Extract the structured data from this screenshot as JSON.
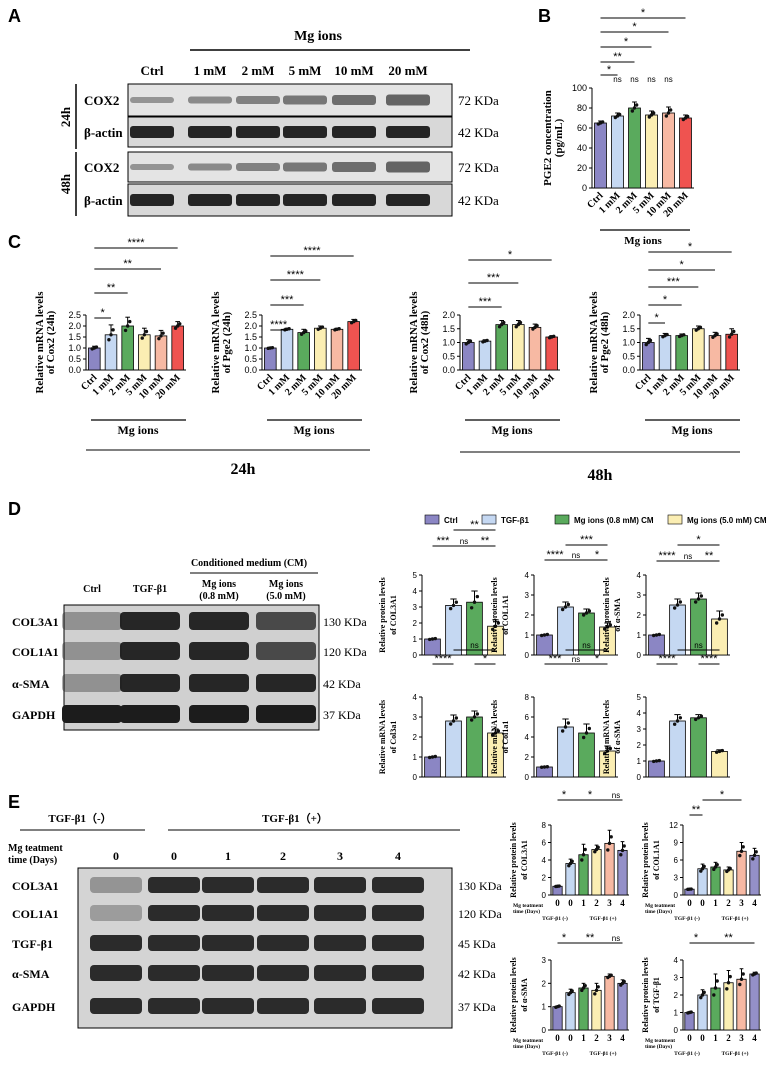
{
  "panels": {
    "A": "A",
    "B": "B",
    "C": "C",
    "D": "D",
    "E": "E"
  },
  "colors": {
    "ctrl": "#8b86c4",
    "c1": "#c5d8f2",
    "c2": "#5aaa5d",
    "c5": "#fbeeb3",
    "c10": "#f7b9a3",
    "c20": "#ef5350",
    "purple": "#9490c8"
  },
  "panelA": {
    "group_label": "Mg ions",
    "columns": [
      "Ctrl",
      "1 mM",
      "2 mM",
      "5 mM",
      "10 mM",
      "20 mM"
    ],
    "times": [
      "24h",
      "48h"
    ],
    "rows": [
      {
        "name": "COX2",
        "kda": "72 KDa"
      },
      {
        "name": "β-actin",
        "kda": "42 KDa"
      },
      {
        "name": "COX2",
        "kda": "72 KDa"
      },
      {
        "name": "β-actin",
        "kda": "42 KDa"
      }
    ]
  },
  "panelB": {
    "ylabel_line1": "PGE2 concentration",
    "ylabel_line2": "(pg/mL)",
    "yticks": [
      "0",
      "20",
      "40",
      "60",
      "80",
      "100"
    ],
    "xlabel": "Mg ions",
    "categories": [
      "Ctrl",
      "1 mM",
      "2 mM",
      "5 mM",
      "10 mM",
      "20 mM"
    ],
    "values": [
      65,
      72,
      80,
      73,
      75,
      70
    ],
    "errors": [
      2,
      3,
      6,
      4,
      6,
      3
    ],
    "sig_top": [
      "*",
      "*",
      "*",
      "**",
      "*"
    ],
    "sig_adj": [
      "*",
      "ns",
      "ns",
      "ns",
      "ns"
    ]
  },
  "panelC": {
    "xlabel": "Mg ions",
    "categories": [
      "Ctrl",
      "1 mM",
      "2 mM",
      "5 mM",
      "10 mM",
      "20 mM"
    ],
    "time_24": "24h",
    "time_48": "48h",
    "charts": [
      {
        "ylabel1": "Relative mRNA levels",
        "ylabel2": "of Cox2 (24h)",
        "yticks": [
          "0.0",
          "0.5",
          "1.0",
          "1.5",
          "2.0",
          "2.5"
        ],
        "ymax": 2.5,
        "values": [
          1.0,
          1.6,
          2.0,
          1.6,
          1.55,
          2.0
        ],
        "errors": [
          0.08,
          0.45,
          0.4,
          0.3,
          0.25,
          0.2
        ],
        "sig": [
          "*",
          "**",
          "**",
          "****"
        ]
      },
      {
        "ylabel1": "Relative mRNA levels",
        "ylabel2": "of Pge2 (24h)",
        "yticks": [
          "0.0",
          "0.5",
          "1.0",
          "1.5",
          "2.0",
          "2.5"
        ],
        "ymax": 2.5,
        "values": [
          1.0,
          1.85,
          1.7,
          1.9,
          1.85,
          2.2
        ],
        "errors": [
          0.03,
          0.05,
          0.15,
          0.1,
          0.05,
          0.1
        ],
        "sig": [
          "****",
          "***",
          "****",
          "****"
        ]
      },
      {
        "ylabel1": "Relative mRNA levels",
        "ylabel2": "of Cox2 (48h)",
        "yticks": [
          "0.0",
          "0.5",
          "1.0",
          "1.5",
          "2.0"
        ],
        "ymax": 2.0,
        "values": [
          1.0,
          1.05,
          1.65,
          1.65,
          1.55,
          1.2
        ],
        "errors": [
          0.1,
          0.05,
          0.15,
          0.15,
          0.12,
          0.05
        ],
        "sig": [
          "***",
          "***",
          "*"
        ]
      },
      {
        "ylabel1": "Relative mRNA levels",
        "ylabel2": "of Pge2 (48h)",
        "yticks": [
          "0.0",
          "0.5",
          "1.0",
          "1.5",
          "2.0"
        ],
        "ymax": 2.0,
        "values": [
          1.0,
          1.25,
          1.25,
          1.5,
          1.25,
          1.3
        ],
        "errors": [
          0.15,
          0.08,
          0.06,
          0.1,
          0.12,
          0.2
        ],
        "sig": [
          "*",
          "*",
          "***",
          "*",
          "*"
        ]
      }
    ]
  },
  "panelD": {
    "legend": [
      "Ctrl",
      "TGF-β1",
      "Mg ions (0.8 mM) CM",
      "Mg ions (5.0 mM) CM"
    ],
    "header": "Conditioned medium (CM)",
    "columns": [
      "Ctrl",
      "TGF-β1",
      "Mg ions\n(0.8 mM)",
      "Mg ions\n(5.0 mM)"
    ],
    "col_line1": [
      "Ctrl",
      "TGF-β1",
      "Mg ions",
      "Mg ions"
    ],
    "col_line2": [
      "",
      "",
      "(0.8 mM)",
      "(5.0 mM)"
    ],
    "rows": [
      {
        "name": "COL3A1",
        "kda": "130 KDa"
      },
      {
        "name": "COL1A1",
        "kda": "120 KDa"
      },
      {
        "name": "α-SMA",
        "kda": "42 KDa"
      },
      {
        "name": "GAPDH",
        "kda": "37 KDa"
      }
    ],
    "charts": [
      {
        "ylabel1": "Relative protein levels",
        "ylabel2": "of COL3A1",
        "yticks": [
          "0",
          "1",
          "2",
          "3",
          "4",
          "5"
        ],
        "ymax": 5,
        "values": [
          1,
          3.1,
          3.3,
          1.8
        ],
        "errors": [
          0,
          0.4,
          0.7,
          0.4
        ],
        "sig": [
          "***",
          "ns",
          "**",
          "**"
        ]
      },
      {
        "ylabel1": "Relative protein levels",
        "ylabel2": "of COL1A1",
        "yticks": [
          "0",
          "1",
          "2",
          "3",
          "4"
        ],
        "ymax": 4,
        "values": [
          1,
          2.4,
          2.1,
          1.4
        ],
        "errors": [
          0,
          0.25,
          0.2,
          0.2
        ],
        "sig": [
          "****",
          "ns",
          "*",
          "***"
        ]
      },
      {
        "ylabel1": "Relative protein levels",
        "ylabel2": "of α-SMA",
        "yticks": [
          "0",
          "1",
          "2",
          "3",
          "4"
        ],
        "ymax": 4,
        "values": [
          1,
          2.5,
          2.8,
          1.8
        ],
        "errors": [
          0,
          0.3,
          0.3,
          0.4
        ],
        "sig": [
          "****",
          "ns",
          "**",
          "*"
        ]
      },
      {
        "ylabel1": "Relative mRNA levels",
        "ylabel2": "of Col3a1",
        "yticks": [
          "0",
          "1",
          "2",
          "3",
          "4"
        ],
        "ymax": 4,
        "values": [
          1,
          2.8,
          3.0,
          2.2
        ],
        "errors": [
          0,
          0.3,
          0.3,
          0.2
        ],
        "sig": [
          "****",
          "ns",
          "*",
          "ns"
        ]
      },
      {
        "ylabel1": "Relative mRNA levels",
        "ylabel2": "of Col1a1",
        "yticks": [
          "0",
          "2",
          "4",
          "6",
          "8"
        ],
        "ymax": 8,
        "values": [
          1,
          5,
          4.4,
          2.6
        ],
        "errors": [
          0,
          0.8,
          0.9,
          0.5
        ],
        "sig": [
          "***",
          "ns",
          "*",
          "ns"
        ]
      },
      {
        "ylabel1": "Relative mRNA levels",
        "ylabel2": "of α-SMA",
        "yticks": [
          "0",
          "1",
          "2",
          "3",
          "4",
          "5"
        ],
        "ymax": 5,
        "values": [
          1,
          3.5,
          3.7,
          1.6
        ],
        "errors": [
          0,
          0.4,
          0.2,
          0.1
        ],
        "sig": [
          "****",
          "ns",
          "****",
          "ns"
        ]
      }
    ]
  },
  "panelE": {
    "tgf_minus": "TGF-β1（-）",
    "tgf_plus": "TGF-β1（+）",
    "mg_label1": "Mg teatment",
    "mg_label2": "time (Days)",
    "days": [
      "0",
      "0",
      "1",
      "2",
      "3",
      "4"
    ],
    "rows": [
      {
        "name": "COL3A1",
        "kda": "130 KDa"
      },
      {
        "name": "COL1A1",
        "kda": "120 KDa"
      },
      {
        "name": "TGF-β1",
        "kda": "45 KDa"
      },
      {
        "name": "α-SMA",
        "kda": "42 KDa"
      },
      {
        "name": "GAPDH",
        "kda": "37 KDa"
      }
    ],
    "x_minus": "TGF-β1 (-)",
    "x_plus": "TGF-β1 (+)",
    "x_mg1": "Mg teatment",
    "x_mg2": "time (Days)",
    "charts": [
      {
        "ylabel1": "Relative protein levels",
        "ylabel2": "of COL3A1",
        "yticks": [
          "0",
          "2",
          "4",
          "6",
          "8"
        ],
        "ymax": 8,
        "values": [
          1,
          3.6,
          4.6,
          5.2,
          5.9,
          5.1
        ],
        "errors": [
          0,
          0.5,
          1.2,
          0.5,
          1.5,
          1.0
        ],
        "sig": [
          "*",
          "*",
          "ns"
        ]
      },
      {
        "ylabel1": "Relative protein levels",
        "ylabel2": "of COL1A1",
        "yticks": [
          "0",
          "3",
          "6",
          "9",
          "12"
        ],
        "ymax": 12,
        "values": [
          1,
          4.5,
          4.8,
          4.3,
          7.5,
          6.8
        ],
        "errors": [
          0,
          0.8,
          0.8,
          0.5,
          1.5,
          1.2
        ],
        "sig": [
          "**",
          "*"
        ]
      },
      {
        "ylabel1": "Relative protein levels",
        "ylabel2": "of α-SMA",
        "yticks": [
          "0",
          "1",
          "2",
          "3"
        ],
        "ymax": 3,
        "values": [
          1,
          1.6,
          1.8,
          1.7,
          2.3,
          2.0
        ],
        "errors": [
          0,
          0.15,
          0.2,
          0.3,
          0.1,
          0.15
        ],
        "sig": [
          "*",
          "**",
          "ns"
        ]
      },
      {
        "ylabel1": "Relative protein levels",
        "ylabel2": "of TGF-β1",
        "yticks": [
          "0",
          "1",
          "2",
          "3",
          "4"
        ],
        "ymax": 4,
        "values": [
          1,
          2.0,
          2.4,
          2.7,
          2.9,
          3.2
        ],
        "errors": [
          0,
          0.3,
          0.8,
          0.7,
          0.6,
          0.1
        ],
        "sig": [
          "*",
          "**"
        ]
      }
    ]
  }
}
